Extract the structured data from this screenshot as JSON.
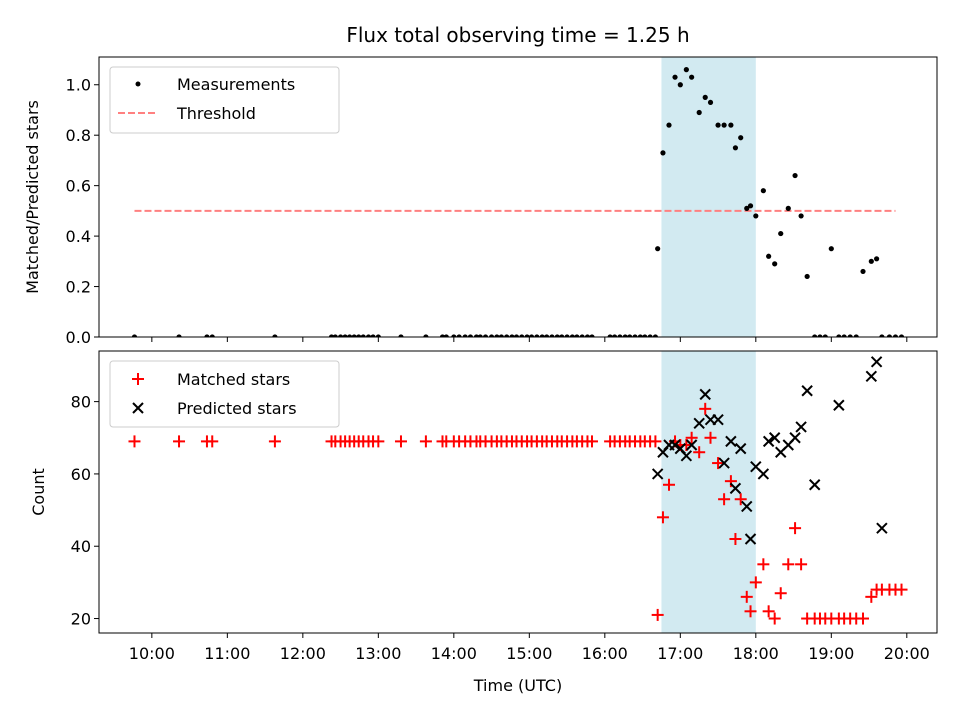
{
  "chart_data": [
    {
      "type": "scatter",
      "title": "Flux total observing time = 1.25 h",
      "xlabel": "",
      "ylabel": "Matched/Predicted stars",
      "xlim": [
        9.3,
        20.4
      ],
      "ylim": [
        0,
        1.11
      ],
      "yticks": [
        0.0,
        0.2,
        0.4,
        0.6,
        0.8,
        1.0
      ],
      "ytick_labels": [
        "0.0",
        "0.2",
        "0.4",
        "0.6",
        "0.8",
        "1.0"
      ],
      "shaded_span": {
        "x": [
          16.75,
          18.0
        ],
        "color": "#add8e6"
      },
      "legend": {
        "position": "top-left",
        "entries": [
          "Measurements",
          "Threshold"
        ]
      },
      "series": [
        {
          "name": "Measurements",
          "kind": "scatter",
          "color": "#000000",
          "x": [
            9.77,
            10.36,
            10.73,
            10.8,
            11.63,
            12.38,
            12.43,
            12.5,
            12.56,
            12.62,
            12.68,
            12.74,
            12.8,
            12.87,
            12.93,
            13.0,
            13.3,
            13.63,
            13.85,
            13.9,
            14.0,
            14.07,
            14.15,
            14.22,
            14.3,
            14.35,
            14.42,
            14.5,
            14.57,
            14.63,
            14.7,
            14.77,
            14.83,
            14.9,
            14.97,
            15.03,
            15.1,
            15.17,
            15.23,
            15.3,
            15.37,
            15.43,
            15.5,
            15.57,
            15.63,
            15.7,
            15.77,
            15.83,
            16.07,
            16.13,
            16.2,
            16.27,
            16.33,
            16.4,
            16.47,
            16.53,
            16.6,
            16.67,
            16.7,
            16.77,
            16.85,
            16.93,
            17.0,
            17.08,
            17.15,
            17.25,
            17.33,
            17.4,
            17.5,
            17.58,
            17.67,
            17.73,
            17.8,
            17.88,
            17.93,
            18.0,
            18.1,
            18.17,
            18.25,
            18.33,
            18.43,
            18.52,
            18.6,
            18.68,
            18.78,
            18.85,
            18.92,
            19.0,
            19.1,
            19.17,
            19.25,
            19.33,
            19.42,
            19.53,
            19.6,
            19.67,
            19.77,
            19.85,
            19.93
          ],
          "y": [
            0,
            0,
            0,
            0,
            0,
            0,
            0,
            0,
            0,
            0,
            0,
            0,
            0,
            0,
            0,
            0,
            0,
            0,
            0,
            0,
            0,
            0,
            0,
            0,
            0,
            0,
            0,
            0,
            0,
            0,
            0,
            0,
            0,
            0,
            0,
            0,
            0,
            0,
            0,
            0,
            0,
            0,
            0,
            0,
            0,
            0,
            0,
            0,
            0,
            0,
            0,
            0,
            0,
            0,
            0,
            0,
            0,
            0,
            0.35,
            0.73,
            0.84,
            1.03,
            1.0,
            1.06,
            1.03,
            0.89,
            0.95,
            0.93,
            0.84,
            0.84,
            0.84,
            0.75,
            0.79,
            0.51,
            0.52,
            0.48,
            0.58,
            0.32,
            0.29,
            0.41,
            0.51,
            0.64,
            0.48,
            0.24,
            0,
            0,
            0,
            0.35,
            0,
            0,
            0,
            0,
            0.26,
            0.3,
            0.31,
            0,
            0,
            0,
            0
          ]
        },
        {
          "name": "Threshold",
          "kind": "line",
          "style": "dashed",
          "color": "#ff8080",
          "x": [
            9.77,
            19.85
          ],
          "y": [
            0.5,
            0.5
          ]
        }
      ]
    },
    {
      "type": "scatter",
      "title": "",
      "xlabel": "Time (UTC)",
      "ylabel": "Count",
      "xlim": [
        9.3,
        20.4
      ],
      "ylim": [
        16,
        94
      ],
      "yticks": [
        20,
        40,
        60,
        80
      ],
      "ytick_labels": [
        "20",
        "40",
        "60",
        "80"
      ],
      "xticks": [
        10,
        11,
        12,
        13,
        14,
        15,
        16,
        17,
        18,
        19,
        20
      ],
      "xtick_labels": [
        "10:00",
        "11:00",
        "12:00",
        "13:00",
        "14:00",
        "15:00",
        "16:00",
        "17:00",
        "18:00",
        "19:00",
        "20:00"
      ],
      "shaded_span": {
        "x": [
          16.75,
          18.0
        ],
        "color": "#add8e6"
      },
      "legend": {
        "position": "top-left",
        "entries": [
          "Matched stars",
          "Predicted stars"
        ]
      },
      "series": [
        {
          "name": "Matched stars",
          "marker": "+",
          "color": "#ff0000",
          "x": [
            9.77,
            10.36,
            10.73,
            10.8,
            11.63,
            12.38,
            12.43,
            12.5,
            12.56,
            12.62,
            12.68,
            12.74,
            12.8,
            12.87,
            12.93,
            13.0,
            13.3,
            13.63,
            13.85,
            13.9,
            14.0,
            14.07,
            14.15,
            14.22,
            14.3,
            14.35,
            14.42,
            14.5,
            14.57,
            14.63,
            14.7,
            14.77,
            14.83,
            14.9,
            14.97,
            15.03,
            15.1,
            15.17,
            15.23,
            15.3,
            15.37,
            15.43,
            15.5,
            15.57,
            15.63,
            15.7,
            15.77,
            15.83,
            16.07,
            16.13,
            16.2,
            16.27,
            16.33,
            16.4,
            16.47,
            16.53,
            16.6,
            16.67,
            16.7,
            16.77,
            16.85,
            16.93,
            17.0,
            17.08,
            17.15,
            17.25,
            17.33,
            17.4,
            17.5,
            17.58,
            17.67,
            17.73,
            17.8,
            17.88,
            17.93,
            18.0,
            18.1,
            18.17,
            18.25,
            18.33,
            18.43,
            18.52,
            18.6,
            18.68,
            18.78,
            18.85,
            18.92,
            19.0,
            19.1,
            19.17,
            19.25,
            19.33,
            19.42,
            19.53,
            19.6,
            19.67,
            19.77,
            19.85,
            19.93
          ],
          "y": [
            69,
            69,
            69,
            69,
            69,
            69,
            69,
            69,
            69,
            69,
            69,
            69,
            69,
            69,
            69,
            69,
            69,
            69,
            69,
            69,
            69,
            69,
            69,
            69,
            69,
            69,
            69,
            69,
            69,
            69,
            69,
            69,
            69,
            69,
            69,
            69,
            69,
            69,
            69,
            69,
            69,
            69,
            69,
            69,
            69,
            69,
            69,
            69,
            69,
            69,
            69,
            69,
            69,
            69,
            69,
            69,
            69,
            69,
            21,
            48,
            57,
            69,
            68,
            68,
            70,
            66,
            78,
            70,
            63,
            53,
            58,
            42,
            53,
            26,
            22,
            30,
            35,
            22,
            20,
            27,
            35,
            45,
            35,
            20,
            20,
            20,
            20,
            20,
            20,
            20,
            20,
            20,
            20,
            26,
            28,
            28,
            28,
            28,
            28
          ]
        },
        {
          "name": "Predicted stars",
          "marker": "x",
          "color": "#000000",
          "x": [
            16.7,
            16.77,
            16.85,
            16.93,
            17.0,
            17.08,
            17.15,
            17.25,
            17.33,
            17.4,
            17.5,
            17.58,
            17.67,
            17.73,
            17.8,
            17.88,
            17.93,
            18.0,
            18.1,
            18.17,
            18.25,
            18.33,
            18.43,
            18.52,
            18.6,
            18.68,
            18.78,
            19.1,
            19.53,
            19.6,
            19.67
          ],
          "y": [
            60,
            66,
            68,
            68,
            67,
            65,
            68,
            74,
            82,
            75,
            75,
            63,
            69,
            56,
            67,
            51,
            42,
            62,
            60,
            69,
            70,
            66,
            68,
            70,
            73,
            83,
            57,
            79,
            87,
            91,
            45
          ]
        }
      ]
    }
  ]
}
